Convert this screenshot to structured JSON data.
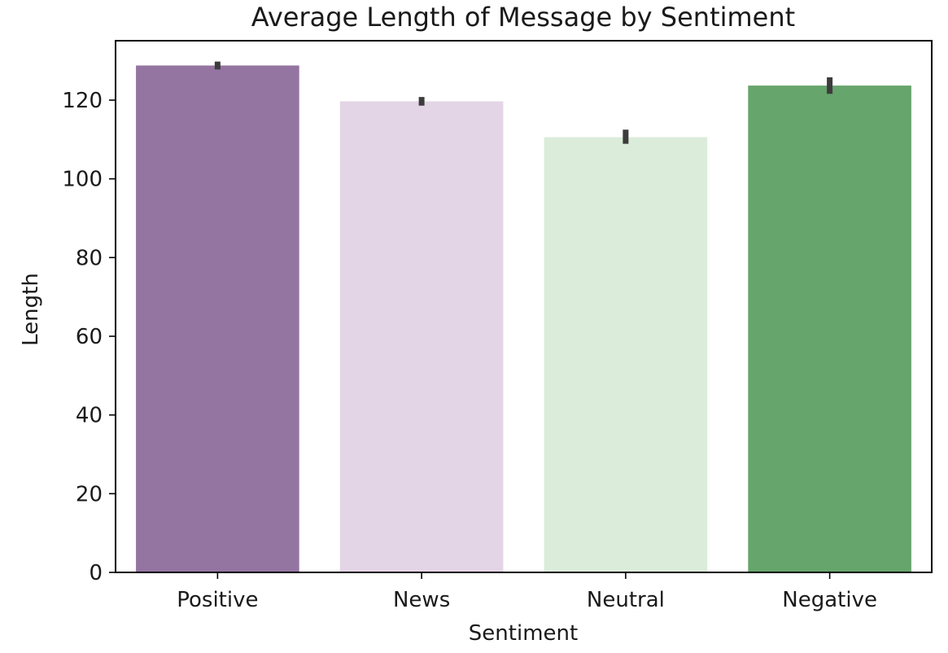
{
  "chart_data": {
    "type": "bar",
    "title": "Average Length of Message by Sentiment",
    "xlabel": "Sentiment",
    "ylabel": "Length",
    "categories": [
      "Positive",
      "News",
      "Neutral",
      "Negative"
    ],
    "values": [
      128.8,
      119.7,
      110.6,
      123.7
    ],
    "error_bars": [
      [
        127.8,
        129.8
      ],
      [
        118.6,
        120.8
      ],
      [
        108.9,
        112.5
      ],
      [
        121.6,
        125.8
      ]
    ],
    "colors": [
      "#9474a1",
      "#e4d5e6",
      "#dbedda",
      "#66a56c"
    ],
    "error_bar_color": "#3c3c3c",
    "ylim": [
      0,
      135.1
    ],
    "yticks": [
      0,
      20,
      40,
      60,
      80,
      100,
      120
    ],
    "grid": false,
    "legend": "none"
  }
}
